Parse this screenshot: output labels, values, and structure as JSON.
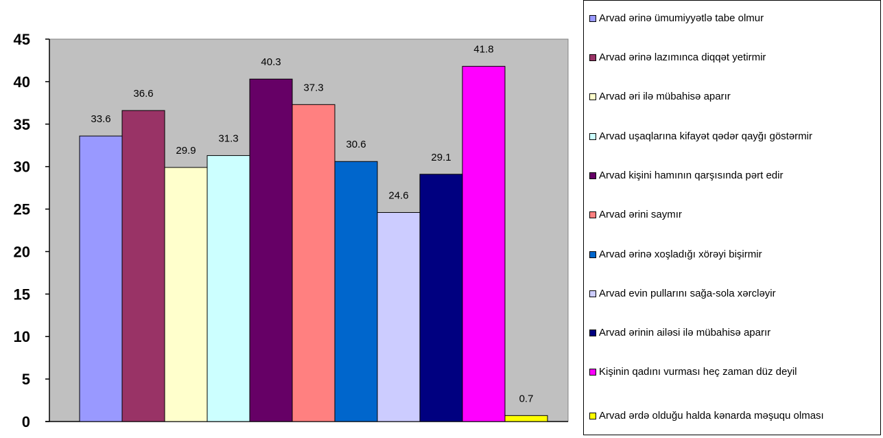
{
  "chart_data": {
    "type": "bar",
    "ylim": [
      0,
      45
    ],
    "yticks": [
      "0",
      "5",
      "10",
      "15",
      "20",
      "25",
      "30",
      "35",
      "40",
      "45"
    ],
    "plot_background": "#C0C0C0",
    "grid": false,
    "legend_position": "right",
    "series": [
      {
        "name": "Arvad ərinə ümumiyyətlə tabe olmur",
        "value": 33.6,
        "label": "33.6",
        "color": "#9999FF"
      },
      {
        "name": "Arvad ərinə lazımınca diqqət yetirmir",
        "value": 36.6,
        "label": "36.6",
        "color": "#993366"
      },
      {
        "name": "Arvad əri ilə mübahisə aparır",
        "value": 29.9,
        "label": "29.9",
        "color": "#FFFFCC"
      },
      {
        "name": "Arvad uşaqlarına kifayət qədər qayğı göstərmir",
        "value": 31.3,
        "label": "31.3",
        "color": "#CCFFFF"
      },
      {
        "name": "Arvad kişini hamının qarşısında pərt edir",
        "value": 40.3,
        "label": "40.3",
        "color": "#660066"
      },
      {
        "name": "Arvad ərini saymır",
        "value": 37.3,
        "label": "37.3",
        "color": "#FF8080"
      },
      {
        "name": "Arvad ərinə xoşladığı xörəyi bişirmir",
        "value": 30.6,
        "label": "30.6",
        "color": "#0066CC"
      },
      {
        "name": "Arvad evin pullarını sağa-sola xərcləyir",
        "value": 24.6,
        "label": "24.6",
        "color": "#CCCCFF"
      },
      {
        "name": "Arvad ərinin ailəsi ilə mübahisə aparır",
        "value": 29.1,
        "label": "29.1",
        "color": "#000080"
      },
      {
        "name": "Kişinin qadını vurması heç zaman düz deyil",
        "value": 41.8,
        "label": "41.8",
        "color": "#FF00FF"
      },
      {
        "name": "Arvad ərdə olduğu halda kənarda məşuqu olması",
        "value": 0.7,
        "label": "0.7",
        "color": "#FFFF00"
      }
    ]
  }
}
